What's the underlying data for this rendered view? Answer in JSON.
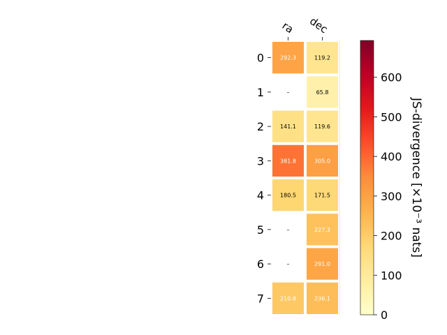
{
  "chart_data": {
    "type": "heatmap",
    "columns": [
      "ra",
      "dec"
    ],
    "rows": [
      "0",
      "1",
      "2",
      "3",
      "4",
      "5",
      "6",
      "7"
    ],
    "missing_label": "–",
    "values": [
      [
        292.3,
        119.2
      ],
      [
        null,
        65.8
      ],
      [
        141.1,
        119.6
      ],
      [
        381.8,
        305.0
      ],
      [
        180.5,
        171.5
      ],
      [
        null,
        227.3
      ],
      [
        null,
        291.0
      ],
      [
        210.8,
        236.1
      ]
    ],
    "value_labels": [
      [
        "292.3",
        "119.2"
      ],
      [
        "–",
        "65.8"
      ],
      [
        "141.1",
        "119.6"
      ],
      [
        "381.8",
        "305.0"
      ],
      [
        "180.5",
        "171.5"
      ],
      [
        "–",
        "227.3"
      ],
      [
        "–",
        "291.0"
      ],
      [
        "210.8",
        "236.1"
      ]
    ],
    "colorbar": {
      "label": "JS-divergence [×10⁻³ nats]",
      "range": [
        0,
        693
      ],
      "ticks": [
        0,
        100,
        200,
        300,
        400,
        500,
        600
      ],
      "tick_labels": [
        "0",
        "100",
        "200",
        "300",
        "400",
        "500",
        "600"
      ],
      "colormap": "YlOrRd"
    }
  }
}
